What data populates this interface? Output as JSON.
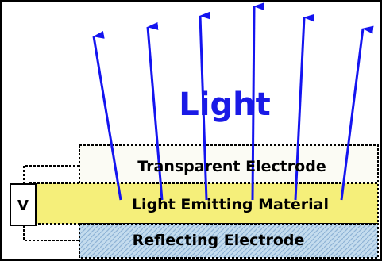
{
  "diagram": {
    "light_label": "Light",
    "voltage_label": "V",
    "layers": {
      "transparent": "Transparent Electrode",
      "emitting": "Light Emitting Material",
      "reflecting": "Reflecting Electrode"
    },
    "colors": {
      "arrow": "#1414f0",
      "light_text": "#1a1ae6",
      "emitting_fill": "#f5ef7a",
      "reflecting_fill": "#b4d2e8",
      "transparent_fill": "#fbfbf4",
      "outline": "#000000"
    }
  }
}
